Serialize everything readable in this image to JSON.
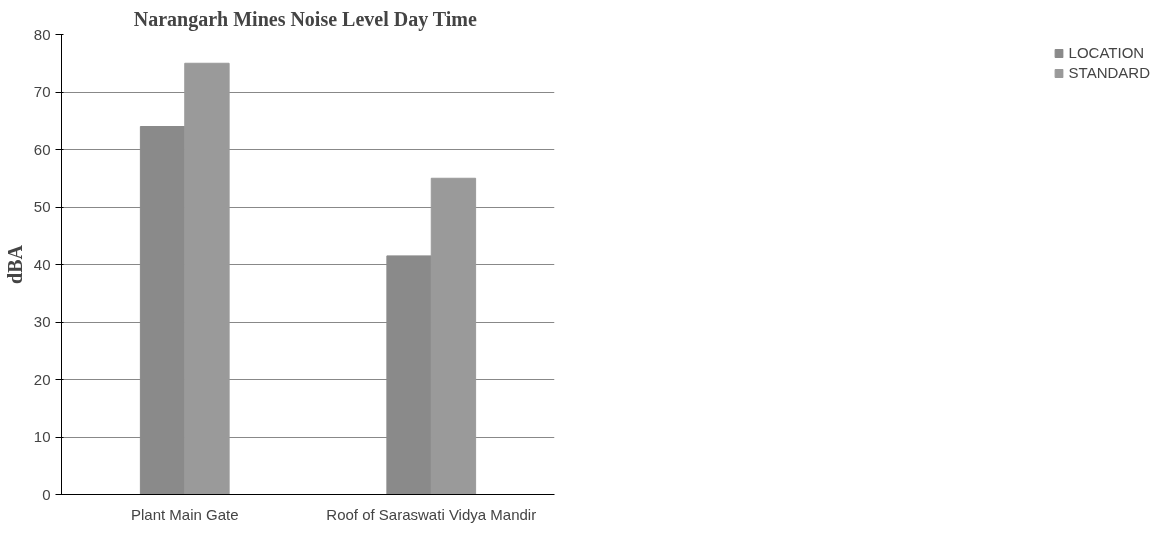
{
  "chart_data": {
    "type": "bar",
    "title": "Narangarh  Mines Noise Level Day Time",
    "ylabel": "dBA",
    "categories": [
      "Plant Main Gate",
      "Roof of Saraswati Vidya Mandir"
    ],
    "series": [
      {
        "name": "LOCATION",
        "color": "#8a8a8a",
        "values": [
          64,
          41.5
        ]
      },
      {
        "name": "STANDARD",
        "color": "#9a9a9a",
        "values": [
          75,
          55
        ]
      }
    ],
    "ylim": [
      0,
      80
    ],
    "yticks": [
      0,
      10,
      20,
      30,
      40,
      50,
      60,
      70,
      80
    ],
    "grid": "y",
    "legend": "right"
  }
}
